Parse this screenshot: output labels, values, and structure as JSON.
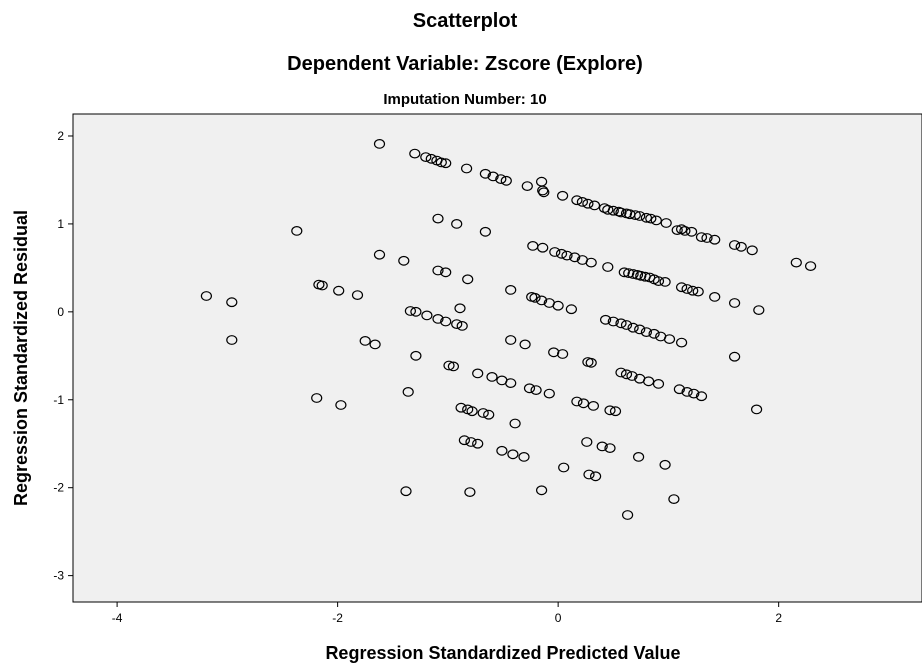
{
  "chart_data": {
    "type": "scatter",
    "title": "Scatterplot",
    "subtitle": "Dependent Variable: Zscore (Explore)",
    "subtitle2": "Imputation Number: 10",
    "xlabel": "Regression Standardized Predicted Value",
    "ylabel": "Regression Standardized Residual",
    "xlim": [
      -4.4,
      3.3
    ],
    "ylim": [
      -3.3,
      2.25
    ],
    "xticks": [
      "-4",
      "-2",
      "0",
      "2"
    ],
    "yticks": [
      "2",
      "1",
      "0",
      "-1",
      "-2",
      "-3"
    ],
    "grid": false,
    "plot_background": "#f0f0f0",
    "marker_color": "#000000",
    "points": [
      [
        -1.62,
        1.91
      ],
      [
        -1.3,
        1.8
      ],
      [
        -1.2,
        1.76
      ],
      [
        -1.15,
        1.74
      ],
      [
        -1.1,
        1.72
      ],
      [
        -1.06,
        1.7
      ],
      [
        -1.02,
        1.69
      ],
      [
        -0.83,
        1.63
      ],
      [
        -0.66,
        1.57
      ],
      [
        -0.59,
        1.54
      ],
      [
        -0.52,
        1.51
      ],
      [
        -0.47,
        1.49
      ],
      [
        -0.28,
        1.43
      ],
      [
        -0.15,
        1.48
      ],
      [
        -0.14,
        1.38
      ],
      [
        -0.13,
        1.36
      ],
      [
        0.04,
        1.32
      ],
      [
        0.17,
        1.27
      ],
      [
        0.22,
        1.25
      ],
      [
        0.27,
        1.23
      ],
      [
        0.33,
        1.21
      ],
      [
        0.42,
        1.18
      ],
      [
        0.45,
        1.16
      ],
      [
        0.5,
        1.15
      ],
      [
        0.55,
        1.14
      ],
      [
        0.57,
        1.13
      ],
      [
        0.62,
        1.12
      ],
      [
        0.65,
        1.11
      ],
      [
        0.7,
        1.1
      ],
      [
        0.74,
        1.09
      ],
      [
        0.8,
        1.07
      ],
      [
        0.84,
        1.06
      ],
      [
        0.89,
        1.04
      ],
      [
        0.98,
        1.01
      ],
      [
        1.08,
        0.93
      ],
      [
        1.12,
        0.94
      ],
      [
        1.15,
        0.92
      ],
      [
        1.21,
        0.91
      ],
      [
        1.3,
        0.85
      ],
      [
        1.35,
        0.84
      ],
      [
        1.42,
        0.82
      ],
      [
        1.6,
        0.76
      ],
      [
        1.66,
        0.74
      ],
      [
        1.76,
        0.7
      ],
      [
        -2.37,
        0.92
      ],
      [
        -1.09,
        1.06
      ],
      [
        -0.92,
        1.0
      ],
      [
        -0.66,
        0.91
      ],
      [
        -0.23,
        0.75
      ],
      [
        -0.14,
        0.73
      ],
      [
        -0.03,
        0.68
      ],
      [
        0.03,
        0.66
      ],
      [
        0.08,
        0.64
      ],
      [
        0.15,
        0.62
      ],
      [
        0.22,
        0.59
      ],
      [
        0.3,
        0.56
      ],
      [
        0.45,
        0.51
      ],
      [
        0.6,
        0.45
      ],
      [
        0.64,
        0.44
      ],
      [
        0.68,
        0.43
      ],
      [
        0.72,
        0.42
      ],
      [
        0.75,
        0.41
      ],
      [
        0.79,
        0.4
      ],
      [
        0.83,
        0.39
      ],
      [
        0.87,
        0.37
      ],
      [
        0.91,
        0.35
      ],
      [
        0.97,
        0.34
      ],
      [
        1.12,
        0.28
      ],
      [
        1.17,
        0.26
      ],
      [
        1.22,
        0.24
      ],
      [
        1.27,
        0.23
      ],
      [
        1.42,
        0.17
      ],
      [
        1.6,
        0.1
      ],
      [
        1.82,
        0.02
      ],
      [
        2.16,
        0.56
      ],
      [
        2.29,
        0.52
      ],
      [
        -1.62,
        0.65
      ],
      [
        -1.4,
        0.58
      ],
      [
        -1.09,
        0.47
      ],
      [
        -1.02,
        0.45
      ],
      [
        -0.82,
        0.37
      ],
      [
        -2.17,
        0.31
      ],
      [
        -2.14,
        0.3
      ],
      [
        -1.99,
        0.24
      ],
      [
        -1.82,
        0.19
      ],
      [
        -3.19,
        0.18
      ],
      [
        -2.96,
        0.11
      ],
      [
        -0.43,
        0.25
      ],
      [
        -0.24,
        0.17
      ],
      [
        -0.21,
        0.16
      ],
      [
        -0.15,
        0.13
      ],
      [
        -0.08,
        0.1
      ],
      [
        0.0,
        0.07
      ],
      [
        0.12,
        0.03
      ],
      [
        -0.89,
        0.04
      ],
      [
        -1.34,
        0.01
      ],
      [
        -1.29,
        0.0
      ],
      [
        -1.19,
        -0.04
      ],
      [
        -1.09,
        -0.08
      ],
      [
        -1.02,
        -0.11
      ],
      [
        -0.92,
        -0.14
      ],
      [
        -0.87,
        -0.16
      ],
      [
        0.43,
        -0.09
      ],
      [
        0.5,
        -0.11
      ],
      [
        0.57,
        -0.13
      ],
      [
        0.62,
        -0.15
      ],
      [
        0.68,
        -0.18
      ],
      [
        0.74,
        -0.2
      ],
      [
        0.8,
        -0.23
      ],
      [
        0.87,
        -0.25
      ],
      [
        0.93,
        -0.28
      ],
      [
        1.01,
        -0.31
      ],
      [
        1.12,
        -0.35
      ],
      [
        1.6,
        -0.51
      ],
      [
        -2.96,
        -0.32
      ],
      [
        -1.75,
        -0.33
      ],
      [
        -1.66,
        -0.37
      ],
      [
        -0.43,
        -0.32
      ],
      [
        -0.3,
        -0.37
      ],
      [
        -0.04,
        -0.46
      ],
      [
        0.04,
        -0.48
      ],
      [
        0.27,
        -0.57
      ],
      [
        0.3,
        -0.58
      ],
      [
        -1.29,
        -0.5
      ],
      [
        -0.99,
        -0.61
      ],
      [
        -0.95,
        -0.62
      ],
      [
        -0.73,
        -0.7
      ],
      [
        -0.6,
        -0.74
      ],
      [
        -0.51,
        -0.78
      ],
      [
        -0.43,
        -0.81
      ],
      [
        0.57,
        -0.69
      ],
      [
        0.62,
        -0.71
      ],
      [
        0.67,
        -0.73
      ],
      [
        0.74,
        -0.76
      ],
      [
        0.82,
        -0.79
      ],
      [
        0.91,
        -0.82
      ],
      [
        1.1,
        -0.88
      ],
      [
        1.17,
        -0.91
      ],
      [
        1.23,
        -0.93
      ],
      [
        1.3,
        -0.96
      ],
      [
        -0.26,
        -0.87
      ],
      [
        -0.2,
        -0.89
      ],
      [
        -0.08,
        -0.93
      ],
      [
        -1.36,
        -0.91
      ],
      [
        -2.19,
        -0.98
      ],
      [
        -1.97,
        -1.06
      ],
      [
        1.8,
        -1.11
      ],
      [
        0.17,
        -1.02
      ],
      [
        0.23,
        -1.04
      ],
      [
        0.32,
        -1.07
      ],
      [
        0.47,
        -1.12
      ],
      [
        0.52,
        -1.13
      ],
      [
        -0.88,
        -1.09
      ],
      [
        -0.82,
        -1.11
      ],
      [
        -0.78,
        -1.13
      ],
      [
        -0.68,
        -1.15
      ],
      [
        -0.63,
        -1.17
      ],
      [
        -0.39,
        -1.27
      ],
      [
        -0.85,
        -1.46
      ],
      [
        -0.79,
        -1.48
      ],
      [
        -0.73,
        -1.5
      ],
      [
        -0.51,
        -1.58
      ],
      [
        -0.41,
        -1.62
      ],
      [
        -0.31,
        -1.65
      ],
      [
        0.26,
        -1.48
      ],
      [
        0.4,
        -1.53
      ],
      [
        0.47,
        -1.55
      ],
      [
        0.73,
        -1.65
      ],
      [
        0.97,
        -1.74
      ],
      [
        0.05,
        -1.77
      ],
      [
        0.28,
        -1.85
      ],
      [
        0.34,
        -1.87
      ],
      [
        -1.38,
        -2.04
      ],
      [
        -0.8,
        -2.05
      ],
      [
        -0.15,
        -2.03
      ],
      [
        1.05,
        -2.13
      ],
      [
        0.63,
        -2.31
      ]
    ]
  }
}
